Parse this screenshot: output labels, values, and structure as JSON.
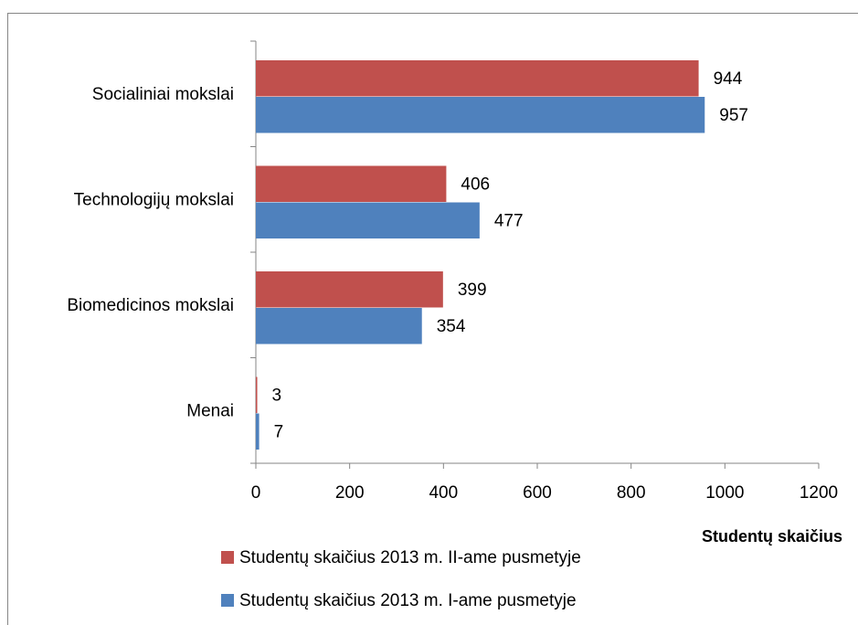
{
  "chart_data": {
    "type": "hbar",
    "categories": [
      "Socialiniai mokslai",
      "Technologijų mokslai",
      "Biomedicinos mokslai",
      "Menai"
    ],
    "series": [
      {
        "name": "Studentų skaičius 2013 m. II-ame pusmetyje",
        "color": "#c0504d",
        "values": [
          944,
          406,
          399,
          3
        ]
      },
      {
        "name": "Studentų skaičius 2013 m. I-ame pusmetyje",
        "color": "#4f81bd",
        "values": [
          957,
          477,
          354,
          7
        ]
      }
    ],
    "x_label": "Studentų skaičius",
    "xlim": [
      0,
      1200
    ],
    "xticks": [
      0,
      200,
      400,
      600,
      800,
      1000,
      1200
    ],
    "legend": "bottom"
  }
}
